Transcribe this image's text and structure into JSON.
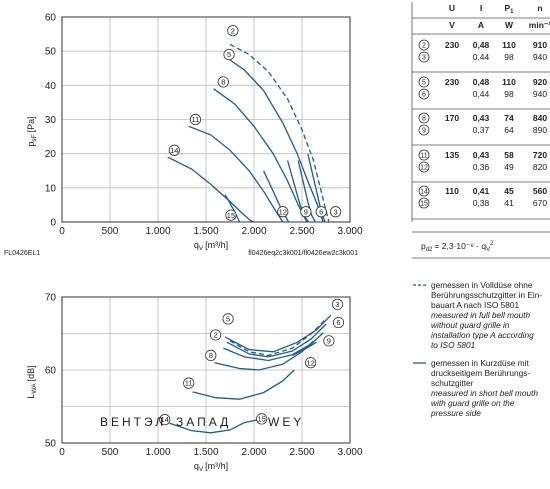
{
  "colors": {
    "curve": "#1f5a8f",
    "grid": "#bdbdbd",
    "text": "#222222",
    "watermark": "#9fb9d6"
  },
  "chart_data": [
    {
      "type": "line",
      "xlabel": "q",
      "xlabel_sub": "V",
      "xlabel_unit": "[m³/h]",
      "ylabel": "p",
      "ylabel_sub": "sF",
      "ylabel_unit": "[Pa]",
      "xlim": [
        0,
        3000
      ],
      "ylim": [
        0,
        60
      ],
      "xticks": [
        0,
        500,
        1000,
        1500,
        2000,
        2500,
        3000
      ],
      "xtick_labels": [
        "0",
        "500",
        "1.000",
        "1.500",
        "2.000",
        "2.500",
        "3.000"
      ],
      "yticks": [
        0,
        10,
        20,
        30,
        40,
        50,
        60
      ],
      "grid": true,
      "id_left": "FL0426EL1",
      "id_right": "fl0426eq2c3k001/fl0426ew2c3k001",
      "series": [
        {
          "name": "2",
          "style": "dashed",
          "x": [
            1750,
            1950,
            2150,
            2350,
            2500,
            2620,
            2700,
            2780
          ],
          "y": [
            52,
            49,
            44,
            36,
            27,
            18,
            9,
            0
          ],
          "label_at": [
            1780,
            56
          ]
        },
        {
          "name": "5",
          "style": "solid",
          "x": [
            1720,
            1900,
            2100,
            2300,
            2450,
            2560,
            2660,
            2720
          ],
          "y": [
            48,
            44.5,
            38.5,
            29,
            20,
            12,
            5,
            0
          ],
          "label_at": [
            1740,
            49
          ]
        },
        {
          "name": "8",
          "style": "solid",
          "x": [
            1580,
            1800,
            2000,
            2200,
            2350,
            2460,
            2550
          ],
          "y": [
            39,
            34.5,
            28,
            20,
            12,
            5,
            0
          ],
          "label_at": [
            1680,
            41
          ]
        },
        {
          "name": "11",
          "style": "solid",
          "x": [
            1320,
            1550,
            1750,
            1950,
            2100,
            2220,
            2300
          ],
          "y": [
            28,
            25.5,
            21,
            15,
            9,
            3.5,
            0
          ],
          "label_at": [
            1390,
            30
          ]
        },
        {
          "name": "14",
          "style": "solid",
          "x": [
            1100,
            1350,
            1550,
            1750,
            1880,
            1960,
            2000
          ],
          "y": [
            19,
            15.5,
            11,
            6,
            2.5,
            0.5,
            0
          ],
          "label_at": [
            1170,
            21
          ]
        },
        {
          "name": "3",
          "style": "solid",
          "x": [
            2560,
            2610,
            2660,
            2700,
            2740
          ],
          "y": [
            20,
            14,
            8,
            3,
            0
          ],
          "label_at": [
            2850,
            3
          ]
        },
        {
          "name": "6",
          "style": "solid",
          "x": [
            2460,
            2510,
            2560,
            2600,
            2640
          ],
          "y": [
            18,
            12,
            6,
            2,
            0
          ],
          "label_at": [
            2700,
            3
          ]
        },
        {
          "name": "9",
          "style": "solid",
          "x": [
            2350,
            2420,
            2480,
            2530,
            2570
          ],
          "y": [
            18,
            11,
            5,
            1.5,
            0
          ],
          "label_at": [
            2540,
            3
          ]
        },
        {
          "name": "12",
          "style": "solid",
          "x": [
            2100,
            2200,
            2290,
            2360
          ],
          "y": [
            15,
            9,
            3.5,
            0
          ],
          "label_at": [
            2300,
            3
          ]
        },
        {
          "name": "15",
          "style": "solid",
          "x": [
            1700,
            1800,
            1850
          ],
          "y": [
            8,
            3,
            0
          ],
          "label_at": [
            1760,
            2
          ]
        }
      ]
    },
    {
      "type": "line",
      "xlabel": "q",
      "xlabel_sub": "V",
      "xlabel_unit": "[m³/h]",
      "ylabel": "L",
      "ylabel_sub": "WA",
      "ylabel_unit": "[dB]",
      "xlim": [
        0,
        3000
      ],
      "ylim": [
        50,
        70
      ],
      "xticks": [
        0,
        500,
        1000,
        1500,
        2000,
        2500,
        3000
      ],
      "xtick_labels": [
        "0",
        "500",
        "1.000",
        "1.500",
        "2.000",
        "2.500",
        "3.000"
      ],
      "yticks": [
        50,
        60,
        70
      ],
      "yticks_minor": [
        55,
        65
      ],
      "grid": true,
      "series": [
        {
          "name": "2",
          "style": "dashed",
          "x": [
            1750,
            1950,
            2150,
            2400,
            2600,
            2750
          ],
          "y": [
            64,
            62.5,
            62,
            63,
            65,
            67
          ],
          "label_at": [
            1600,
            64.8
          ]
        },
        {
          "name": "3",
          "style": "solid",
          "x": [
            1700,
            1950,
            2200,
            2450,
            2650,
            2800
          ],
          "y": [
            64.5,
            62.8,
            62.5,
            63.8,
            65.5,
            67.5
          ],
          "label_at": [
            2870,
            69
          ]
        },
        {
          "name": "5",
          "style": "solid",
          "x": [
            1720,
            1950,
            2150,
            2400,
            2600,
            2750
          ],
          "y": [
            63.8,
            62.2,
            61.8,
            62.6,
            64.3,
            66.3
          ],
          "label_at": [
            1730,
            67
          ]
        },
        {
          "name": "6",
          "style": "solid",
          "x": [
            1680,
            1900,
            2150,
            2400,
            2600,
            2720
          ],
          "y": [
            63,
            61.8,
            61.3,
            62.1,
            63.6,
            65.1
          ],
          "label_at": [
            2880,
            66.5
          ]
        },
        {
          "name": "8",
          "style": "solid",
          "x": [
            1590,
            1850,
            2050,
            2300,
            2500,
            2620
          ],
          "y": [
            61,
            60.2,
            60,
            60.8,
            62.5,
            64
          ],
          "label_at": [
            1550,
            62
          ]
        },
        {
          "name": "9",
          "style": "solid",
          "x": [
            2400,
            2550,
            2650
          ],
          "y": [
            62,
            63,
            63.8
          ],
          "label_at": [
            2780,
            64
          ]
        },
        {
          "name": "11",
          "style": "solid",
          "x": [
            1360,
            1600,
            1850,
            2100,
            2300
          ],
          "y": [
            57,
            56.2,
            56,
            56.9,
            58.5
          ],
          "label_at": [
            1320,
            58.2
          ]
        },
        {
          "name": "12",
          "style": "solid",
          "x": [
            2300,
            2420
          ],
          "y": [
            58.5,
            60
          ],
          "label_at": [
            2590,
            61
          ]
        },
        {
          "name": "14",
          "style": "solid",
          "x": [
            1120,
            1350,
            1550,
            1750,
            1900
          ],
          "y": [
            52.7,
            51.7,
            51.4,
            51.8,
            52.8
          ],
          "label_at": [
            1070,
            53.2
          ]
        },
        {
          "name": "15",
          "style": "solid",
          "x": [
            1900,
            2050
          ],
          "y": [
            52.8,
            53.2
          ],
          "label_at": [
            2080,
            53.3
          ]
        }
      ]
    },
    {
      "type": "table",
      "columns": [
        "",
        "U",
        "I",
        "P",
        "n"
      ],
      "col_sub": [
        "",
        "",
        "",
        "1",
        ""
      ],
      "units": [
        "",
        "V",
        "A",
        "W",
        "min⁻¹"
      ],
      "rows": [
        [
          "2",
          "230",
          "0,48",
          "110",
          "910"
        ],
        [
          "3",
          "",
          "0,44",
          "98",
          "940"
        ],
        [
          "5",
          "230",
          "0,48",
          "110",
          "920"
        ],
        [
          "6",
          "",
          "0,44",
          "98",
          "940"
        ],
        [
          "8",
          "170",
          "0,43",
          "74",
          "840"
        ],
        [
          "9",
          "",
          "0,37",
          "64",
          "890"
        ],
        [
          "11",
          "135",
          "0,43",
          "58",
          "720"
        ],
        [
          "12",
          "",
          "0,36",
          "49",
          "820"
        ],
        [
          "14",
          "110",
          "0,41",
          "45",
          "560"
        ],
        [
          "15",
          "",
          "0,38",
          "41",
          "670"
        ]
      ],
      "bold_rows": [
        0,
        2,
        4,
        6,
        8
      ],
      "formula": "p",
      "formula_sub": "d2",
      "formula_rhs": "= 2,3·10⁻⁶ · q",
      "formula_rhs_sub": "V",
      "formula_rhs_sup": "2"
    }
  ],
  "legend": {
    "dashed": [
      "gemessen in Volldüse ohne",
      "Berührungsschutzgitter in Ein-",
      "bauart A nach ISO 5801",
      "measured in full bell mouth",
      "without guard grille in",
      "installation type A according",
      "to ISO 5801"
    ],
    "solid": [
      "gemessen in Kurzdüse mit",
      "druckseitigem Berührungs-",
      "schutzgitter",
      "measured in short bell mouth",
      "with guard grille on the",
      "pressure side"
    ],
    "italic_from": {
      "dashed": 3,
      "solid": 3
    }
  },
  "watermark": {
    "left": "ВЕНТЭЛ",
    "mid": "ЗАПАД",
    "right": "WEY"
  }
}
